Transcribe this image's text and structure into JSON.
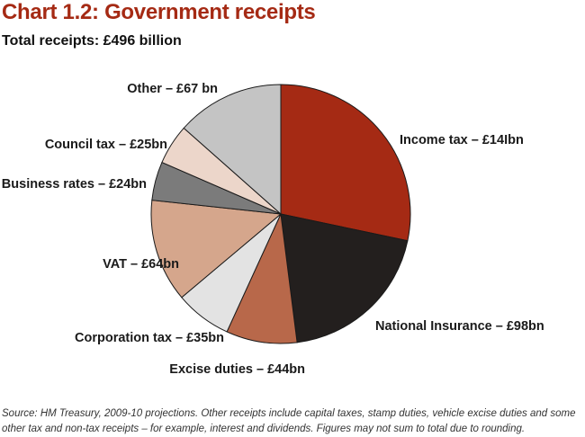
{
  "chart_data": {
    "type": "pie",
    "title": "Chart 1.2: Government receipts",
    "subtitle": "Total receipts: £496 billion",
    "slices": [
      {
        "label": "Income tax – £14Ibn",
        "value": 141,
        "color": "#a52a14"
      },
      {
        "label": "National Insurance – £98bn",
        "value": 98,
        "color": "#231f1e"
      },
      {
        "label": "Excise duties – £44bn",
        "value": 44,
        "color": "#b8684a"
      },
      {
        "label": "Corporation tax – £35bn",
        "value": 35,
        "color": "#e3e3e3"
      },
      {
        "label": "VAT – £64bn",
        "value": 64,
        "color": "#d5a68c"
      },
      {
        "label": "Business rates – £24bn",
        "value": 24,
        "color": "#7b7b7b"
      },
      {
        "label": "Council tax – £25bn",
        "value": 25,
        "color": "#ecd6ca"
      },
      {
        "label": "Other – £67 bn",
        "value": 67,
        "color": "#c4c4c4"
      }
    ]
  },
  "footnote": "Source: HM Treasury, 2009-10 projections. Other receipts include capital taxes, stamp duties, vehicle excise duties and some other tax and non-tax receipts – for example, interest and dividends. Figures may not sum to total due to rounding."
}
